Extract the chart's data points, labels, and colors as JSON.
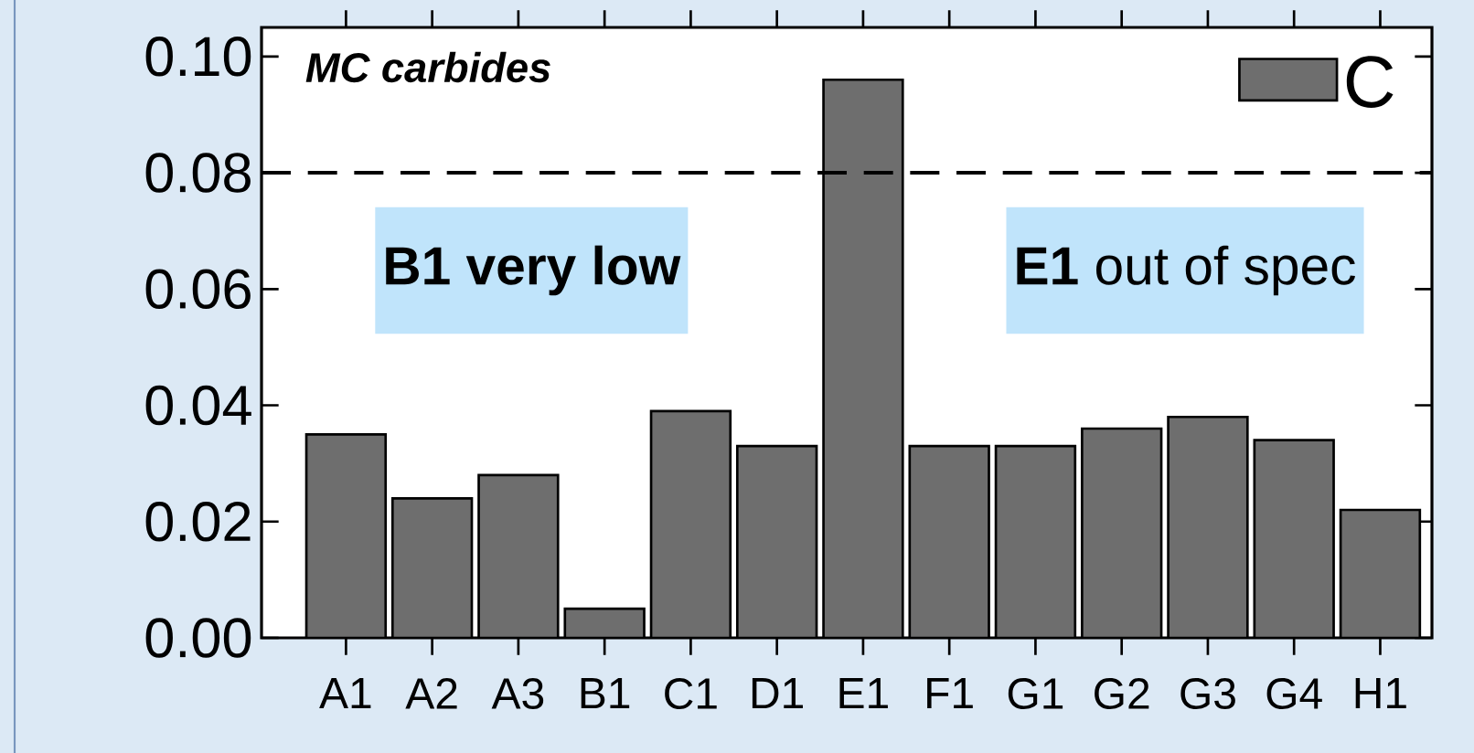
{
  "chart_data": {
    "type": "bar",
    "title": "MC carbides",
    "categories": [
      "A1",
      "A2",
      "A3",
      "B1",
      "C1",
      "D1",
      "E1",
      "F1",
      "G1",
      "G2",
      "G3",
      "G4",
      "H1"
    ],
    "series": [
      {
        "name": "C",
        "color": "#6e6e6e",
        "values": [
          0.035,
          0.024,
          0.028,
          0.005,
          0.039,
          0.033,
          0.096,
          0.033,
          0.033,
          0.036,
          0.038,
          0.034,
          0.022
        ]
      }
    ],
    "ylim": [
      0,
      0.105
    ],
    "yticks": [
      {
        "value": 0,
        "label": "0.00"
      },
      {
        "value": 0.02,
        "label": "0.02"
      },
      {
        "value": 0.04,
        "label": "0.04"
      },
      {
        "value": 0.06,
        "label": "0.06"
      },
      {
        "value": 0.08,
        "label": "0.08"
      },
      {
        "value": 0.1,
        "label": "0.10"
      }
    ],
    "ref_lines": [
      {
        "axis": "y",
        "value": 0.08,
        "color": "#000000",
        "line_style": "dashed"
      }
    ],
    "annotations": [
      "B1 very low",
      "**E1** out of spec"
    ],
    "legend": "top right",
    "grid": false
  }
}
